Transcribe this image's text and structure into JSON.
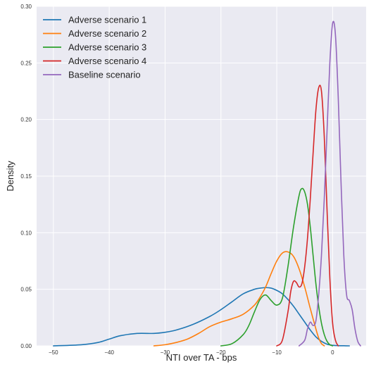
{
  "chart_data": {
    "type": "line",
    "title": "",
    "xlabel": "NTI over TA - bps",
    "ylabel": "Density",
    "xlim": [
      -53,
      6
    ],
    "ylim": [
      0,
      0.3
    ],
    "xticks": [
      -50,
      -40,
      -30,
      -20,
      -10,
      0
    ],
    "yticks": [
      0.0,
      0.05,
      0.1,
      0.15,
      0.2,
      0.25,
      0.3
    ],
    "xtick_labels": [
      "−50",
      "−40",
      "−30",
      "−20",
      "−10",
      "0"
    ],
    "ytick_labels": [
      "0.00",
      "0.05",
      "0.10",
      "0.15",
      "0.20",
      "0.25",
      "0.30"
    ],
    "grid": true,
    "background": "#eaeaf2",
    "legend_position": "top-left",
    "series": [
      {
        "name": "Adverse scenario 1",
        "color": "#1f77b4",
        "x": [
          -50,
          -45,
          -42,
          -40,
          -38,
          -35,
          -32,
          -30,
          -28,
          -25,
          -22,
          -20,
          -18,
          -16,
          -14,
          -13,
          -12,
          -11,
          -10,
          -9,
          -8,
          -7,
          -6,
          -5,
          -4,
          -3,
          -2,
          -1,
          0,
          1,
          2,
          3
        ],
        "y": [
          0.0,
          0.001,
          0.003,
          0.006,
          0.009,
          0.011,
          0.011,
          0.012,
          0.014,
          0.019,
          0.026,
          0.032,
          0.039,
          0.046,
          0.05,
          0.051,
          0.0515,
          0.051,
          0.049,
          0.046,
          0.041,
          0.035,
          0.028,
          0.021,
          0.014,
          0.008,
          0.004,
          0.0015,
          0.0005,
          0.0002,
          0.0001,
          0.0
        ]
      },
      {
        "name": "Adverse scenario 2",
        "color": "#ff7f0e",
        "x": [
          -32,
          -30,
          -28,
          -26,
          -24,
          -22,
          -20,
          -18,
          -16,
          -14,
          -13,
          -12,
          -11,
          -10,
          -9,
          -8,
          -7,
          -6,
          -5,
          -4,
          -3,
          -2.5,
          -2,
          -1.5
        ],
        "y": [
          0.0,
          0.001,
          0.003,
          0.006,
          0.011,
          0.017,
          0.021,
          0.024,
          0.028,
          0.036,
          0.043,
          0.052,
          0.064,
          0.075,
          0.082,
          0.083,
          0.079,
          0.068,
          0.052,
          0.033,
          0.015,
          0.007,
          0.002,
          0.0
        ]
      },
      {
        "name": "Adverse scenario 3",
        "color": "#2ca02c",
        "x": [
          -20,
          -18,
          -16,
          -15,
          -14,
          -13,
          -12,
          -11,
          -10,
          -9,
          -8,
          -7,
          -6,
          -5.5,
          -5,
          -4.5,
          -4,
          -3.5,
          -3,
          -2.5,
          -2,
          -1.5,
          -1,
          -0.5,
          0
        ],
        "y": [
          0.0,
          0.002,
          0.01,
          0.018,
          0.03,
          0.041,
          0.045,
          0.04,
          0.036,
          0.042,
          0.07,
          0.105,
          0.133,
          0.139,
          0.136,
          0.125,
          0.105,
          0.08,
          0.055,
          0.035,
          0.02,
          0.01,
          0.004,
          0.001,
          0.0
        ]
      },
      {
        "name": "Adverse scenario 4",
        "color": "#d62728",
        "x": [
          -10,
          -9,
          -8,
          -7.5,
          -7,
          -6.5,
          -6,
          -5.5,
          -5,
          -4.5,
          -4,
          -3.5,
          -3,
          -2.5,
          -2,
          -1.5,
          -1,
          -0.5,
          0,
          0.5,
          1
        ],
        "y": [
          0.0,
          0.005,
          0.03,
          0.048,
          0.057,
          0.056,
          0.052,
          0.055,
          0.07,
          0.095,
          0.13,
          0.17,
          0.208,
          0.228,
          0.225,
          0.185,
          0.12,
          0.06,
          0.02,
          0.005,
          0.0
        ]
      },
      {
        "name": "Baseline scenario",
        "color": "#9467bd",
        "x": [
          -6,
          -5,
          -4.5,
          -4,
          -3.5,
          -3,
          -2.5,
          -2,
          -1.5,
          -1,
          -0.5,
          0,
          0.5,
          1,
          1.5,
          2,
          2.5,
          3,
          3.5,
          4,
          4.5,
          5
        ],
        "y": [
          0.0,
          0.005,
          0.015,
          0.021,
          0.018,
          0.022,
          0.045,
          0.08,
          0.13,
          0.19,
          0.25,
          0.285,
          0.275,
          0.22,
          0.145,
          0.08,
          0.045,
          0.04,
          0.032,
          0.015,
          0.004,
          0.0
        ]
      }
    ]
  }
}
